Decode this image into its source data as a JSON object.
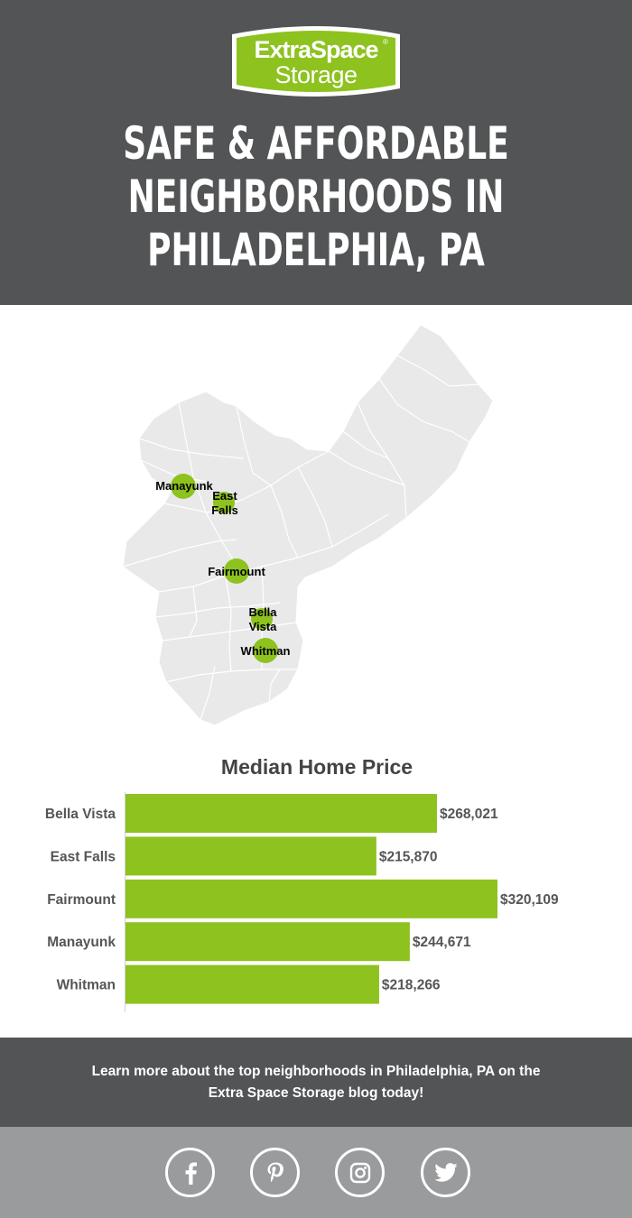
{
  "brand": {
    "logo_line1": "ExtraSpace",
    "logo_line2": "Storage",
    "registered": "®",
    "accent_color": "#8dc21f",
    "dark_color": "#525456"
  },
  "header": {
    "title_lines": [
      "SAFE & AFFORDABLE",
      "NEIGHBORHOODS IN",
      "PHILADELPHIA, PA"
    ]
  },
  "map": {
    "markers": [
      {
        "label": "Manayunk"
      },
      {
        "label": "East Falls"
      },
      {
        "label": "Fairmount"
      },
      {
        "label": "Bella Vista"
      },
      {
        "label": "Whitman"
      }
    ]
  },
  "chart_data": {
    "type": "bar",
    "orientation": "horizontal",
    "title": "Median Home Price",
    "categories": [
      "Bella Vista",
      "East Falls",
      "Fairmount",
      "Manayunk",
      "Whitman"
    ],
    "values": [
      268021,
      215870,
      320109,
      244671,
      218266
    ],
    "data_labels": [
      "$268,021",
      "$215,870",
      "$320,109",
      "$244,671",
      "$218,266"
    ],
    "bar_color": "#8dc21f",
    "grid": false
  },
  "cta": {
    "line1": "Learn more about the top neighborhoods in Philadelphia, PA on the",
    "line2": "Extra Space Storage blog today!"
  },
  "social": {
    "icons": [
      "facebook-icon",
      "pinterest-icon",
      "instagram-icon",
      "twitter-icon"
    ]
  }
}
